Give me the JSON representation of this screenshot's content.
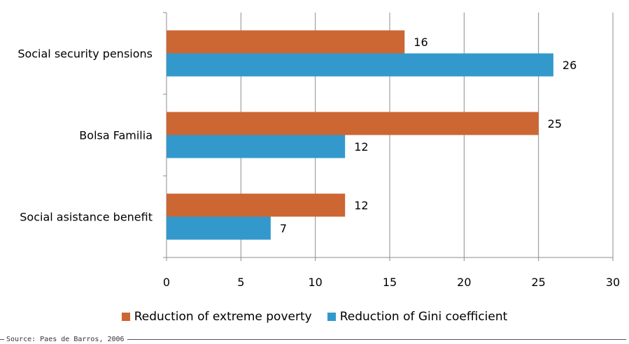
{
  "chart_data": {
    "type": "bar",
    "orientation": "horizontal",
    "categories": [
      "Social security pensions",
      "Bolsa Familia",
      "Social asistance benefit"
    ],
    "series": [
      {
        "name": "Reduction of extreme poverty",
        "color": "#CC6633",
        "values": [
          16,
          25,
          12
        ]
      },
      {
        "name": "Reduction of Gini coefficient",
        "color": "#3399CC",
        "values": [
          26,
          12,
          7
        ]
      }
    ],
    "xlim": [
      0,
      30
    ],
    "xticks": [
      0,
      5,
      10,
      15,
      20,
      25,
      30
    ],
    "grid": true,
    "legend_position": "bottom"
  },
  "source": "Source: Paes de Barros, 2006"
}
